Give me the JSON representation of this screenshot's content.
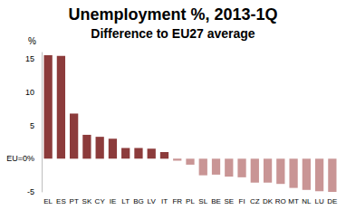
{
  "chart_data": {
    "type": "bar",
    "title": "Unemployment %, 2013-1Q",
    "subtitle": "Difference to EU27 average",
    "ylabel": "%",
    "categories": [
      "EL",
      "ES",
      "PT",
      "SK",
      "CY",
      "IE",
      "LT",
      "BG",
      "LV",
      "IT",
      "FR",
      "PL",
      "SL",
      "BE",
      "SE",
      "FI",
      "CZ",
      "DK",
      "RO",
      "MT",
      "NL",
      "LU",
      "DE"
    ],
    "values": [
      15.6,
      15.5,
      6.8,
      3.6,
      3.3,
      3.0,
      1.6,
      1.6,
      1.5,
      1.0,
      -0.3,
      -0.9,
      -2.5,
      -2.4,
      -2.7,
      -2.8,
      -3.6,
      -3.6,
      -3.8,
      -4.4,
      -4.7,
      -4.9,
      -5.0
    ],
    "colors": [
      "#8c3b3b",
      "#8c3b3b",
      "#8c3b3b",
      "#8c3b3b",
      "#8c3b3b",
      "#8c3b3b",
      "#8c3b3b",
      "#8c3b3b",
      "#8c3b3b",
      "#8c3b3b",
      "#c99595",
      "#c99595",
      "#c99595",
      "#c99595",
      "#c99595",
      "#c99595",
      "#c99595",
      "#c99595",
      "#c99595",
      "#c99595",
      "#c99595",
      "#c99595",
      "#c99595"
    ],
    "ylim": [
      -5,
      16
    ],
    "yticks": [
      -5,
      {
        "value": 0,
        "label": "EU=0%"
      },
      5,
      10,
      15
    ],
    "grid": false
  }
}
